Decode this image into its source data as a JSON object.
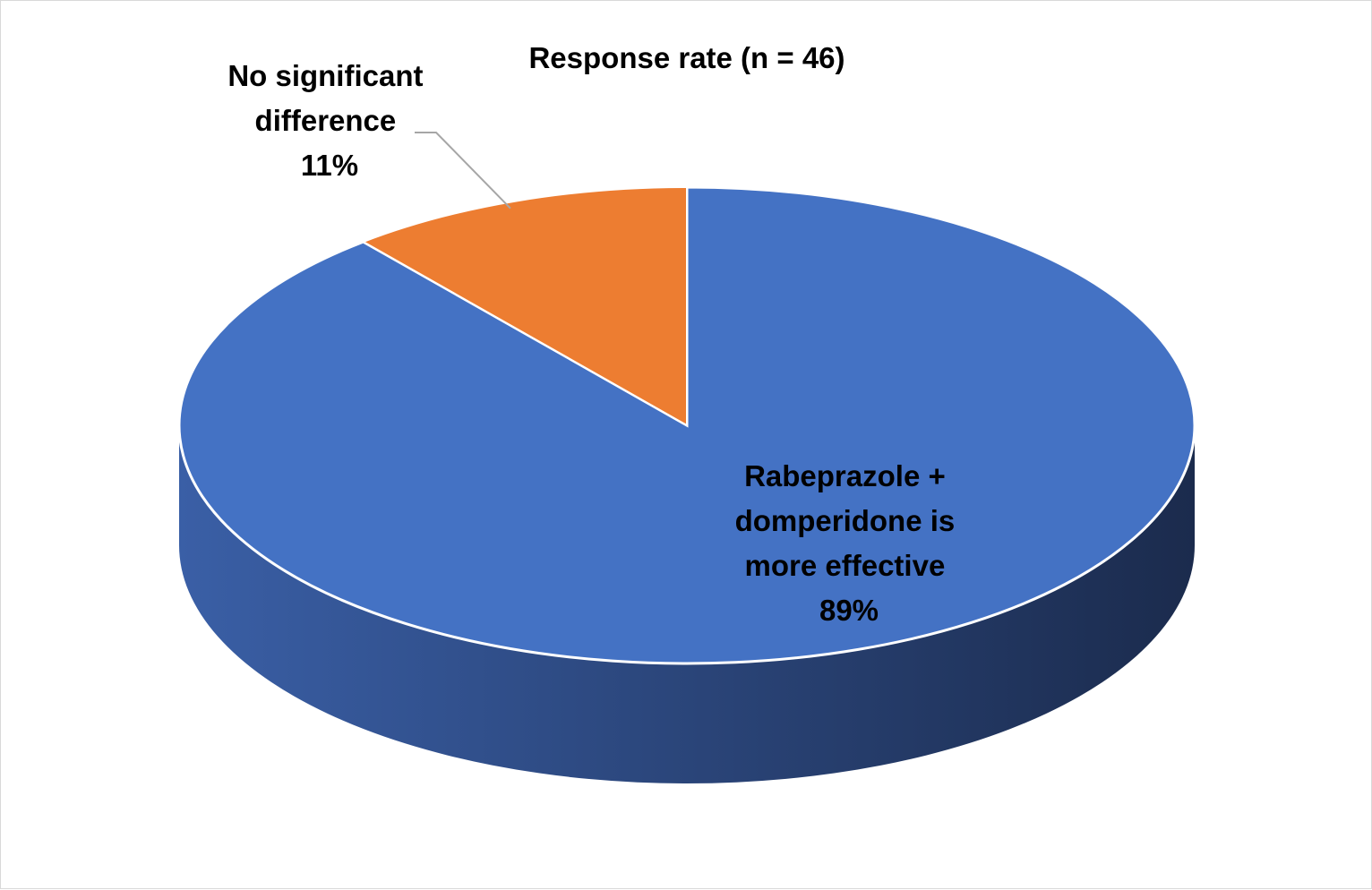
{
  "chart_data": {
    "type": "pie",
    "title": "Response rate (n = 46)",
    "slices": [
      {
        "label_lines": [
          "Rabeprazole +",
          "domperidone is",
          "more effective"
        ],
        "label": "Rabeprazole + domperidone is more effective",
        "value": 89,
        "value_label": "89%",
        "color": "#4472C4",
        "side_color_light": "#3A5FA6",
        "side_color_dark": "#1B2B4D"
      },
      {
        "label_lines": [
          "No significant",
          "difference"
        ],
        "label": "No significant difference",
        "value": 11,
        "value_label": "11%",
        "color": "#ED7D31"
      }
    ],
    "legend": "none",
    "style": "3d-pie"
  }
}
